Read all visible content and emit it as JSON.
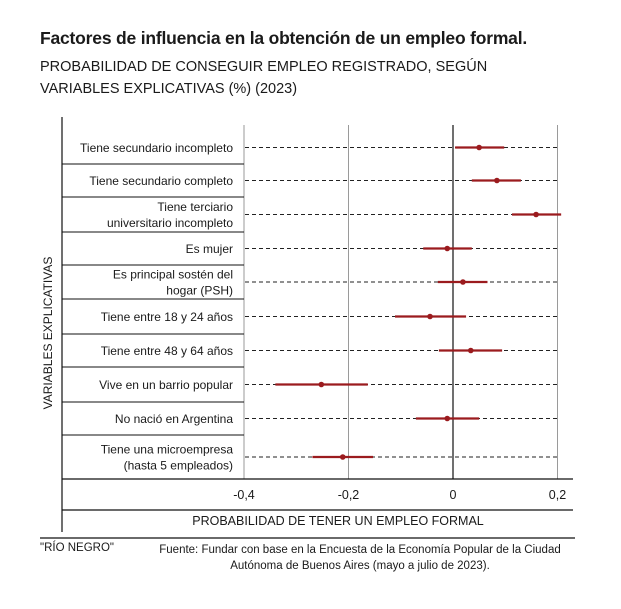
{
  "header": {
    "title": "Factores de influencia en la obtención de un empleo formal.",
    "subtitle_line1": "PROBABILIDAD DE CONSEGUIR EMPLEO REGISTRADO, SEGÚN",
    "subtitle_line2": "VARIABLES EXPLICATIVAS (%) (2023)"
  },
  "chart_data": {
    "type": "scatter",
    "subtype": "forest-plot",
    "title": "Factores de influencia en la obtención de un empleo formal.",
    "xlabel": "PROBABILIDAD DE TENER UN EMPLEO FORMAL",
    "ylabel": "VARIABLES EXPLICATIVAS",
    "xlim": [
      -0.4,
      0.2
    ],
    "xticks": [
      -0.4,
      -0.2,
      0,
      0.2
    ],
    "xtick_labels": [
      "-0,4",
      "-0,2",
      "0",
      "0,2"
    ],
    "grid": true,
    "colors": {
      "marker": "#9b1b1e"
    },
    "rows": [
      {
        "label": [
          "Tiene secundario incompleto"
        ],
        "estimate": 0.05,
        "low": 0.004,
        "high": 0.098
      },
      {
        "label": [
          "Tiene secundario completo"
        ],
        "estimate": 0.084,
        "low": 0.036,
        "high": 0.13
      },
      {
        "label": [
          "Tiene terciario",
          "universitario incompleto"
        ],
        "estimate": 0.159,
        "low": 0.113,
        "high": 0.207
      },
      {
        "label": [
          "Es mujer"
        ],
        "estimate": -0.011,
        "low": -0.057,
        "high": 0.036
      },
      {
        "label": [
          "Es principal sostén del",
          "hogar (PSH)"
        ],
        "estimate": 0.019,
        "low": -0.029,
        "high": 0.066
      },
      {
        "label": [
          "Tiene entre 18 y 24 años"
        ],
        "estimate": -0.044,
        "low": -0.111,
        "high": 0.025
      },
      {
        "label": [
          "Tiene entre 48 y 64 años"
        ],
        "estimate": 0.034,
        "low": -0.027,
        "high": 0.094
      },
      {
        "label": [
          "Vive en un barrio popular"
        ],
        "estimate": -0.252,
        "low": -0.34,
        "high": -0.163
      },
      {
        "label": [
          "No nació en Argentina"
        ],
        "estimate": -0.011,
        "low": -0.071,
        "high": 0.05
      },
      {
        "label": [
          "Tiene una microempresa",
          "(hasta 5 empleados)"
        ],
        "estimate": -0.211,
        "low": -0.269,
        "high": -0.153
      }
    ]
  },
  "footer": {
    "credit": "\"RÍO NEGRO\"",
    "source_line1": "Fuente: Fundar con base en la Encuesta de la Economía Popular de la Ciudad",
    "source_line2": "Autónoma de Buenos Aires (mayo a julio de 2023)."
  }
}
